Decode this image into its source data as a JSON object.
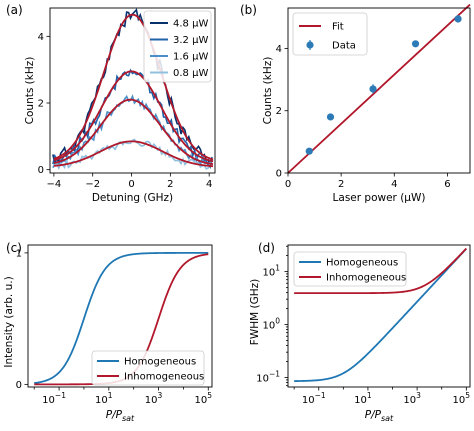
{
  "chart_data": [
    {
      "panel": "(a)",
      "type": "line",
      "xlabel": "Detuning (GHz)",
      "ylabel": "Counts (kHz)",
      "xlim": [
        -4.2,
        4.3
      ],
      "ylim": [
        -0.1,
        4.85
      ],
      "xticks": [
        -4,
        -2,
        0,
        2,
        4
      ],
      "yticks": [
        0,
        2,
        4
      ],
      "legend_position": "top-right",
      "series": [
        {
          "name": "4.8 μW",
          "color": "#08306b",
          "peak": 4.65,
          "center": 0.05,
          "sigma": 1.48,
          "base": 0.22,
          "noise": 0.18
        },
        {
          "name": "3.2 μW",
          "color": "#2162a8",
          "peak": 2.95,
          "center": 0.0,
          "sigma": 1.55,
          "base": 0.18,
          "noise": 0.13
        },
        {
          "name": "1.6 μW",
          "color": "#4a8fc9",
          "peak": 2.1,
          "center": -0.05,
          "sigma": 1.55,
          "base": 0.12,
          "noise": 0.11
        },
        {
          "name": "0.8 μW",
          "color": "#8fc0e0",
          "peak": 0.85,
          "center": 0.0,
          "sigma": 1.6,
          "base": 0.08,
          "noise": 0.09
        }
      ],
      "fit_color": "#b2182b"
    },
    {
      "panel": "(b)",
      "type": "scatter",
      "xlabel": "Laser power (μW)",
      "ylabel": "Counts (kHz)",
      "xlim": [
        0,
        6.85
      ],
      "ylim": [
        0,
        5.3
      ],
      "xticks": [
        0,
        2,
        4,
        6
      ],
      "yticks": [
        0,
        2,
        4
      ],
      "legend_position": "top-left",
      "legend": {
        "fit": "Fit",
        "data": "Data"
      },
      "points": [
        {
          "x": 0.8,
          "y": 0.7,
          "err": 0.08
        },
        {
          "x": 1.6,
          "y": 1.8,
          "err": 0.07
        },
        {
          "x": 3.2,
          "y": 2.7,
          "err": 0.15
        },
        {
          "x": 4.8,
          "y": 4.15,
          "err": 0.08
        },
        {
          "x": 6.4,
          "y": 4.95,
          "err": 0.12
        }
      ],
      "fit": {
        "slope": 0.79,
        "intercept": 0.0
      },
      "fit_color": "#b2182b",
      "data_color": "#2c7bb6"
    },
    {
      "panel": "(c)",
      "type": "line",
      "xlabel": "P/P_sat",
      "ylabel": "Intensity (arb. u.)",
      "xscale": "log",
      "xlim_log10": [
        -2.25,
        5.15
      ],
      "ylim": [
        -0.02,
        1.06
      ],
      "xticks_log10": [
        -1,
        1,
        3,
        5
      ],
      "yticks": [
        0,
        1
      ],
      "legend_position": "bottom-center",
      "series": [
        {
          "name": "Homogeneous",
          "color": "#1f77b4",
          "model": "P/(1+P)",
          "scale": 1
        },
        {
          "name": "Inhomogeneous",
          "color": "#b2182b",
          "model": "P/(1+P)",
          "scale": 1000
        }
      ]
    },
    {
      "panel": "(d)",
      "type": "line",
      "xlabel": "P/P_sat",
      "ylabel": "FWHM (GHz)",
      "xscale": "log",
      "yscale": "log",
      "xlim_log10": [
        -2.25,
        5.15
      ],
      "ylim_log10": [
        -1.18,
        1.5
      ],
      "xticks_log10": [
        -1,
        1,
        3,
        5
      ],
      "yticks_log10": [
        -1,
        0,
        1
      ],
      "legend_position": "top-left",
      "series": [
        {
          "name": "Homogeneous",
          "color": "#1f77b4",
          "w0": 0.085
        },
        {
          "name": "Inhomogeneous",
          "color": "#b2182b",
          "w0": 0.085,
          "inhom": 3.9
        }
      ]
    }
  ]
}
